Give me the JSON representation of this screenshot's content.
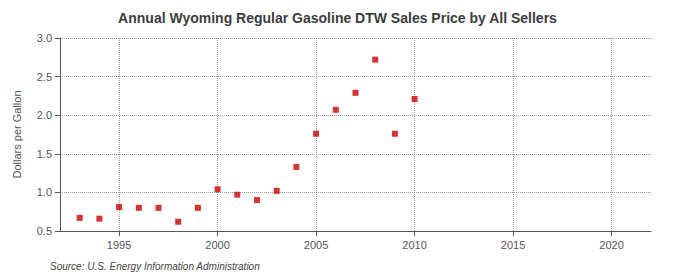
{
  "chart_data": {
    "type": "scatter",
    "title": "Annual Wyoming Regular Gasoline DTW Sales Price by All Sellers",
    "ylabel": "Dollars per Gallon",
    "annotations": [
      "Source: U.S. Energy Information Administration"
    ],
    "x": [
      1993,
      1994,
      1995,
      1996,
      1997,
      1998,
      1999,
      2000,
      2001,
      2002,
      2003,
      2004,
      2005,
      2006,
      2007,
      2008,
      2009,
      2010
    ],
    "values": [
      0.67,
      0.66,
      0.81,
      0.8,
      0.8,
      0.62,
      0.8,
      1.04,
      0.97,
      0.9,
      1.02,
      1.33,
      1.76,
      2.07,
      2.29,
      2.72,
      1.76,
      2.21
    ],
    "color": "#cc0000",
    "marker": "square",
    "xlim": [
      1992,
      2022
    ],
    "ylim": [
      0.5,
      3.0
    ],
    "xticks": [
      1995,
      2000,
      2005,
      2010,
      2015,
      2020
    ],
    "yticks": [
      0.5,
      {
        "value": 1,
        "label": "1.0"
      },
      1.5,
      {
        "value": 2,
        "label": "2.0"
      },
      2.5,
      {
        "value": 3,
        "label": "3.0"
      }
    ],
    "grid": true
  }
}
